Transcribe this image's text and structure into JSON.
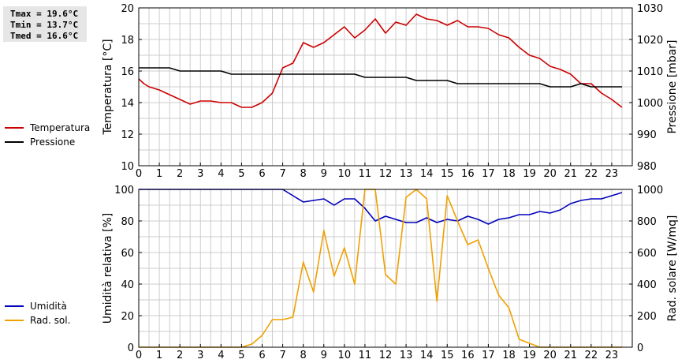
{
  "stats": {
    "tmax": "Tmax = 19.6°C",
    "tmin": "Tmin = 13.7°C",
    "tmed": "Tmed = 16.6°C"
  },
  "colors": {
    "temperature": "#cc0000",
    "pressure": "#000000",
    "humidity": "#0000bb",
    "radiation": "#f0a000",
    "grid": "#cccccc"
  },
  "chart_data": [
    {
      "type": "line",
      "xlabel": "",
      "ylabel": "Temperatura [°C]",
      "y2label": "Pressione [mbar]",
      "xlim": [
        0,
        24
      ],
      "ylim": [
        10,
        20
      ],
      "y2lim": [
        980,
        1030
      ],
      "x_ticks": [
        "0",
        "1",
        "2",
        "3",
        "4",
        "5",
        "6",
        "7",
        "8",
        "9",
        "10",
        "11",
        "12",
        "13",
        "14",
        "15",
        "16",
        "17",
        "18",
        "19",
        "20",
        "21",
        "22",
        "23"
      ],
      "y_ticks": [
        "10",
        "12",
        "14",
        "16",
        "18",
        "20"
      ],
      "y2_ticks": [
        "980",
        "990",
        "1000",
        "1010",
        "1020",
        "1030"
      ],
      "grid": true,
      "legend_position": "left",
      "series": [
        {
          "name": "Temperatura",
          "axis": "left",
          "color": "#cc0000",
          "x": [
            0,
            0.25,
            0.5,
            1,
            1.5,
            2,
            2.5,
            3,
            3.5,
            4,
            4.5,
            5,
            5.5,
            6,
            6.5,
            7,
            7.5,
            8,
            8.5,
            9,
            9.5,
            10,
            10.5,
            11,
            11.5,
            12,
            12.5,
            13,
            13.5,
            14,
            14.5,
            15,
            15.5,
            16,
            16.5,
            17,
            17.5,
            18,
            18.5,
            19,
            19.5,
            20,
            20.5,
            21,
            21.5,
            22,
            22.5,
            23,
            23.5
          ],
          "y": [
            15.5,
            15.2,
            15.0,
            14.8,
            14.5,
            14.2,
            13.9,
            14.1,
            14.1,
            14.0,
            14.0,
            13.7,
            13.7,
            14.0,
            14.6,
            16.2,
            16.5,
            17.8,
            17.5,
            17.8,
            18.3,
            18.8,
            18.1,
            18.6,
            19.3,
            18.4,
            19.1,
            18.9,
            19.6,
            19.3,
            19.2,
            18.9,
            19.2,
            18.8,
            18.8,
            18.7,
            18.3,
            18.1,
            17.5,
            17.0,
            16.8,
            16.3,
            16.1,
            15.8,
            15.2,
            15.2,
            14.6,
            14.2,
            13.7
          ]
        },
        {
          "name": "Pressione",
          "axis": "right",
          "color": "#000000",
          "x": [
            0,
            1.5,
            2,
            4,
            4.5,
            7,
            10.5,
            11,
            13,
            13.5,
            15,
            15.5,
            19.5,
            20,
            21,
            21.5,
            22,
            23.5
          ],
          "y": [
            1011,
            1011,
            1010,
            1010,
            1009,
            1009,
            1009,
            1008,
            1008,
            1007,
            1007,
            1006,
            1006,
            1005,
            1005,
            1006,
            1005,
            1005
          ]
        }
      ]
    },
    {
      "type": "line",
      "xlabel": "",
      "ylabel": "Umidità relativa [%]",
      "y2label": "Rad. solare [W/mq]",
      "xlim": [
        0,
        24
      ],
      "ylim": [
        0,
        100
      ],
      "y2lim": [
        0,
        1000
      ],
      "x_ticks": [
        "0",
        "1",
        "2",
        "3",
        "4",
        "5",
        "6",
        "7",
        "8",
        "9",
        "10",
        "11",
        "12",
        "13",
        "14",
        "15",
        "16",
        "17",
        "18",
        "19",
        "20",
        "21",
        "22",
        "23"
      ],
      "y_ticks": [
        "0",
        "20",
        "40",
        "60",
        "80",
        "100"
      ],
      "y2_ticks": [
        "0",
        "200",
        "400",
        "600",
        "800",
        "1000"
      ],
      "grid": true,
      "legend_position": "left",
      "series": [
        {
          "name": "Umidità",
          "axis": "left",
          "color": "#0000bb",
          "x": [
            0,
            7,
            7.5,
            8,
            8.5,
            9,
            9.5,
            10,
            10.5,
            11,
            11.5,
            12,
            12.5,
            13,
            13.5,
            14,
            14.5,
            15,
            15.5,
            16,
            16.5,
            17,
            17.5,
            18,
            18.5,
            19,
            19.5,
            20,
            20.5,
            21,
            21.5,
            22,
            22.5,
            23,
            23.5
          ],
          "y": [
            100,
            100,
            96,
            92,
            93,
            94,
            90,
            94,
            94,
            88,
            80,
            83,
            81,
            79,
            79,
            82,
            79,
            81,
            80,
            83,
            81,
            78,
            81,
            82,
            84,
            84,
            86,
            85,
            87,
            91,
            93,
            94,
            94,
            96,
            98
          ]
        },
        {
          "name": "Rad. sol.",
          "axis": "right",
          "color": "#f0a000",
          "x": [
            0,
            5,
            5.5,
            6,
            6.5,
            7,
            7.5,
            8,
            8.5,
            9,
            9.5,
            10,
            10.5,
            11,
            11.5,
            12,
            12.5,
            13,
            13.5,
            14,
            14.5,
            15,
            15.5,
            16,
            16.5,
            17,
            17.5,
            18,
            18.5,
            19,
            19.5,
            20,
            21,
            22,
            23,
            23.5
          ],
          "y": [
            0,
            0,
            20,
            75,
            175,
            175,
            190,
            540,
            350,
            740,
            450,
            630,
            400,
            1000,
            1000,
            460,
            400,
            950,
            1000,
            940,
            290,
            960,
            800,
            650,
            680,
            500,
            330,
            250,
            50,
            25,
            0,
            0,
            0,
            0,
            0,
            0
          ]
        }
      ]
    }
  ]
}
